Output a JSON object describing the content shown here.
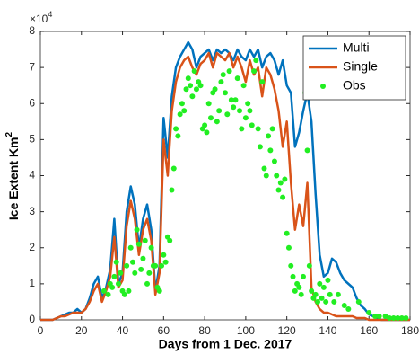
{
  "chart_data": {
    "type": "line",
    "xlabel": "Days from 1 Dec. 2017",
    "ylabel": "Ice Extent Km",
    "ylabel_superscript": "2",
    "y_multiplier": "×10",
    "y_multiplier_power": "4",
    "xlim": [
      0,
      180
    ],
    "xticks": [
      0,
      20,
      40,
      60,
      80,
      100,
      120,
      140,
      160,
      180
    ],
    "ylim": [
      0,
      8
    ],
    "yticks": [
      0,
      1,
      2,
      3,
      4,
      5,
      6,
      7,
      8
    ],
    "grid": false,
    "legend": "top-right",
    "x": [
      0,
      2,
      4,
      6,
      8,
      10,
      12,
      14,
      16,
      18,
      20,
      22,
      24,
      26,
      28,
      30,
      32,
      34,
      36,
      38,
      40,
      42,
      44,
      46,
      48,
      50,
      52,
      54,
      56,
      58,
      60,
      62,
      64,
      66,
      68,
      70,
      72,
      74,
      76,
      78,
      80,
      82,
      84,
      86,
      88,
      90,
      92,
      94,
      96,
      98,
      100,
      102,
      104,
      106,
      108,
      110,
      112,
      114,
      116,
      118,
      120,
      122,
      124,
      126,
      128,
      130,
      132,
      134,
      136,
      138,
      140,
      142,
      144,
      146,
      148,
      150,
      152,
      154,
      156,
      158,
      160,
      162,
      164,
      166,
      168,
      170,
      172,
      174,
      176,
      178,
      180
    ],
    "series": [
      {
        "name": "Multi",
        "color": "#0072BD",
        "kind": "line",
        "values": [
          0,
          0,
          0,
          0,
          0.05,
          0.1,
          0.15,
          0.2,
          0.2,
          0.3,
          0.2,
          0.3,
          0.6,
          1.0,
          1.2,
          0.6,
          0.9,
          1.4,
          2.8,
          1.0,
          1.3,
          3.0,
          3.7,
          3.2,
          2.0,
          2.8,
          3.2,
          2.5,
          0.8,
          1.5,
          5.6,
          4.5,
          6.2,
          7.0,
          7.3,
          7.5,
          7.7,
          7.5,
          7.0,
          7.3,
          7.4,
          7.5,
          7.2,
          7.5,
          7.4,
          7.5,
          7.4,
          7.2,
          7.5,
          7.3,
          7.2,
          7.5,
          7.3,
          7.5,
          7.0,
          7.3,
          7.4,
          7.2,
          6.8,
          7.2,
          6.5,
          6.3,
          4.8,
          5.2,
          5.8,
          6.3,
          5.5,
          3.5,
          1.8,
          1.2,
          1.3,
          1.7,
          1.6,
          1.3,
          1.1,
          1.0,
          0.9,
          0.6,
          0.4,
          0.3,
          0.15,
          0.1,
          0.05,
          0,
          0,
          0,
          0,
          0,
          0,
          0,
          0
        ]
      },
      {
        "name": "Single",
        "color": "#D95319",
        "kind": "line",
        "values": [
          0,
          0,
          0,
          0,
          0.05,
          0.1,
          0.1,
          0.15,
          0.2,
          0.2,
          0.2,
          0.3,
          0.5,
          0.8,
          1.0,
          0.5,
          0.8,
          1.2,
          2.3,
          0.9,
          1.1,
          2.6,
          3.3,
          2.8,
          1.8,
          2.5,
          2.8,
          2.2,
          0.7,
          1.3,
          5.0,
          4.0,
          5.8,
          6.6,
          7.0,
          7.2,
          7.3,
          7.0,
          6.8,
          7.1,
          7.2,
          7.4,
          7.0,
          7.4,
          7.3,
          7.2,
          7.4,
          7.0,
          7.3,
          7.0,
          6.6,
          7.2,
          6.8,
          7.0,
          6.2,
          7.0,
          6.8,
          6.4,
          5.8,
          4.8,
          5.5,
          3.8,
          2.5,
          3.2,
          2.6,
          3.8,
          0.9,
          0.5,
          0.3,
          0.2,
          0.2,
          0.15,
          0.1,
          0.1,
          0.1,
          0.1,
          0.1,
          0.05,
          0.05,
          0.05,
          0,
          0,
          0,
          0,
          0,
          0,
          0,
          0,
          0,
          0,
          0
        ]
      },
      {
        "name": "Obs",
        "color": "#22EE22",
        "kind": "scatter",
        "x": [
          31,
          33,
          34,
          35,
          36,
          37,
          38,
          39,
          40,
          41,
          42,
          43,
          44,
          45,
          46,
          47,
          48,
          49,
          50,
          51,
          52,
          53,
          54,
          55,
          56,
          57,
          58,
          59,
          60,
          61,
          62,
          63,
          64,
          65,
          66,
          67,
          68,
          69,
          70,
          71,
          72,
          73,
          74,
          75,
          76,
          77,
          78,
          79,
          80,
          81,
          82,
          83,
          84,
          85,
          86,
          87,
          88,
          89,
          90,
          91,
          92,
          93,
          94,
          95,
          96,
          97,
          98,
          99,
          100,
          101,
          102,
          103,
          104,
          105,
          106,
          107,
          108,
          109,
          110,
          111,
          112,
          113,
          114,
          115,
          116,
          117,
          118,
          119,
          120,
          121,
          122,
          123,
          124,
          125,
          126,
          127,
          128,
          129,
          130,
          131,
          132,
          133,
          134,
          135,
          136,
          137,
          138,
          139,
          140,
          141,
          143,
          145,
          148,
          150,
          155,
          160,
          163,
          165,
          168,
          170,
          172,
          174,
          176,
          178
        ],
        "values": [
          0.8,
          0.7,
          1.0,
          0.9,
          1.2,
          1.6,
          1.0,
          1.3,
          0.8,
          0.7,
          1.5,
          0.8,
          2.0,
          1.6,
          1.3,
          2.5,
          2.1,
          1.4,
          1.7,
          2.2,
          1.0,
          1.3,
          2.0,
          1.5,
          1.5,
          0.9,
          0.8,
          1.5,
          1.8,
          1.6,
          2.3,
          2.2,
          3.6,
          4.2,
          5.3,
          5.1,
          5.7,
          6.0,
          5.8,
          6.4,
          6.7,
          6.5,
          6.2,
          6.9,
          6.4,
          6.6,
          6.5,
          5.3,
          5.4,
          5.2,
          6.0,
          5.6,
          6.3,
          6.4,
          5.5,
          5.8,
          6.6,
          6.8,
          6.3,
          5.7,
          6.9,
          6.1,
          5.9,
          6.1,
          6.7,
          5.8,
          5.3,
          6.5,
          5.6,
          6.0,
          5.8,
          5.4,
          6.9,
          7.2,
          5.3,
          4.8,
          6.6,
          4.2,
          4.0,
          5.1,
          4.7,
          5.3,
          4.4,
          4.0,
          3.6,
          3.8,
          3.4,
          3.9,
          2.4,
          2.0,
          1.5,
          1.2,
          0.8,
          1.0,
          0.9,
          0.7,
          1.2,
          6.3,
          4.7,
          1.5,
          0.8,
          0.6,
          0.7,
          0.5,
          1.0,
          0.6,
          0.9,
          0.5,
          1.1,
          0.7,
          0.5,
          0.7,
          0.4,
          0.3,
          0.5,
          0.2,
          0.1,
          0.1,
          0.1,
          0.05,
          0.05,
          0.05,
          0.05,
          0.05
        ]
      }
    ]
  }
}
